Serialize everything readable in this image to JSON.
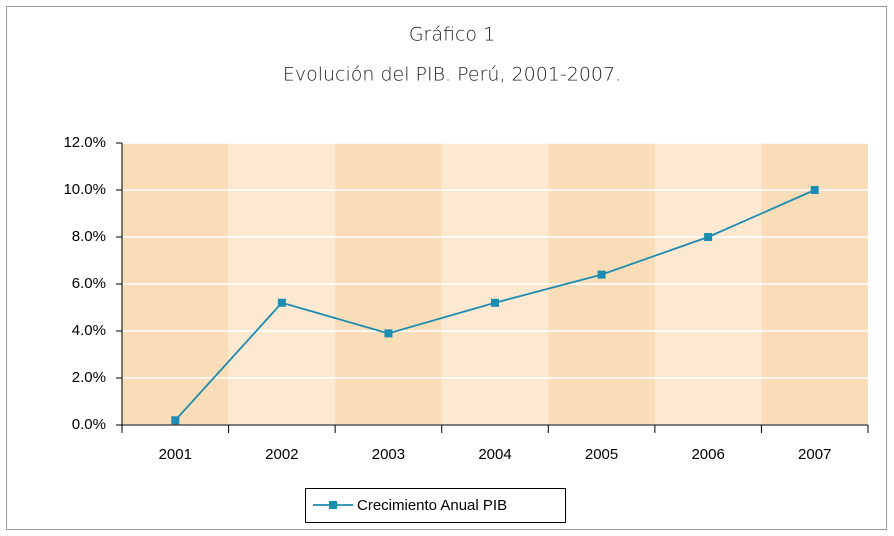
{
  "chart_data": {
    "type": "line",
    "title": "Gráfico 1",
    "subtitle": "Evolución del PIB. Perú, 2001-2007.",
    "categories": [
      "2001",
      "2002",
      "2003",
      "2004",
      "2005",
      "2006",
      "2007"
    ],
    "series": [
      {
        "name": "Crecimiento Anual PIB",
        "color": "#1b8db0",
        "values": [
          0.2,
          5.2,
          3.9,
          5.2,
          6.4,
          8.0,
          10.0
        ]
      }
    ],
    "ylim": [
      0,
      12
    ],
    "yticks": [
      {
        "value": 0,
        "label": "0.0%"
      },
      {
        "value": 2,
        "label": "2.0%"
      },
      {
        "value": 4,
        "label": "4.0%"
      },
      {
        "value": 6,
        "label": "6.0%"
      },
      {
        "value": 8,
        "label": "8.0%"
      },
      {
        "value": 10,
        "label": "10.0%"
      },
      {
        "value": 12,
        "label": "12.0%"
      }
    ],
    "grid": true,
    "legend": "bottom"
  }
}
